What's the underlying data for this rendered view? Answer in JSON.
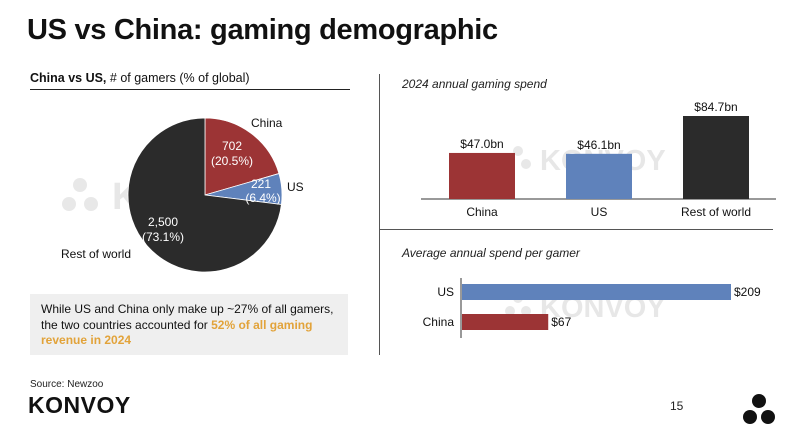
{
  "title": "US vs China: gaming demographic",
  "left_subtitle": {
    "bold": "China vs US,",
    "rest": " # of gamers (% of global)"
  },
  "spend_title": "2024 annual gaming spend",
  "avg_title": "Average annual spend per gamer",
  "callout": {
    "text": "While US and China only make up ~27% of all gamers, the two countries accounted for ",
    "highlight": "52% of all gaming revenue in 2024"
  },
  "source": "Source: Newzoo",
  "logo": "KONVOY",
  "watermark": "KONVOY",
  "page_number": "15",
  "colors": {
    "china": "#9c3435",
    "us": "#5f82bb",
    "row": "#2b2b2b",
    "highlight": "#e2a33a"
  },
  "chart_data": [
    {
      "type": "pie",
      "title": "China vs US, # of gamers (% of global)",
      "slices": [
        {
          "name": "China",
          "value": 702,
          "value_label": "702",
          "pct_label": "(20.5%)",
          "color": "#9c3435"
        },
        {
          "name": "US",
          "value": 221,
          "value_label": "221",
          "pct_label": "(6.4%)",
          "color": "#5f82bb"
        },
        {
          "name": "Rest of world",
          "value": 2500,
          "value_label": "2,500",
          "pct_label": "(73.1%)",
          "color": "#2b2b2b"
        }
      ]
    },
    {
      "type": "bar",
      "title": "2024 annual gaming spend",
      "categories": [
        "China",
        "US",
        "Rest of world"
      ],
      "values": [
        47.0,
        46.1,
        84.7
      ],
      "value_labels": [
        "$47.0bn",
        "$46.1bn",
        "$84.7bn"
      ],
      "colors": [
        "#9c3435",
        "#5f82bb",
        "#2b2b2b"
      ]
    },
    {
      "type": "bar",
      "orientation": "horizontal",
      "title": "Average annual spend per gamer",
      "categories": [
        "US",
        "China"
      ],
      "values": [
        209,
        67
      ],
      "value_labels": [
        "$209",
        "$67"
      ],
      "colors": [
        "#5f82bb",
        "#9c3435"
      ]
    }
  ]
}
